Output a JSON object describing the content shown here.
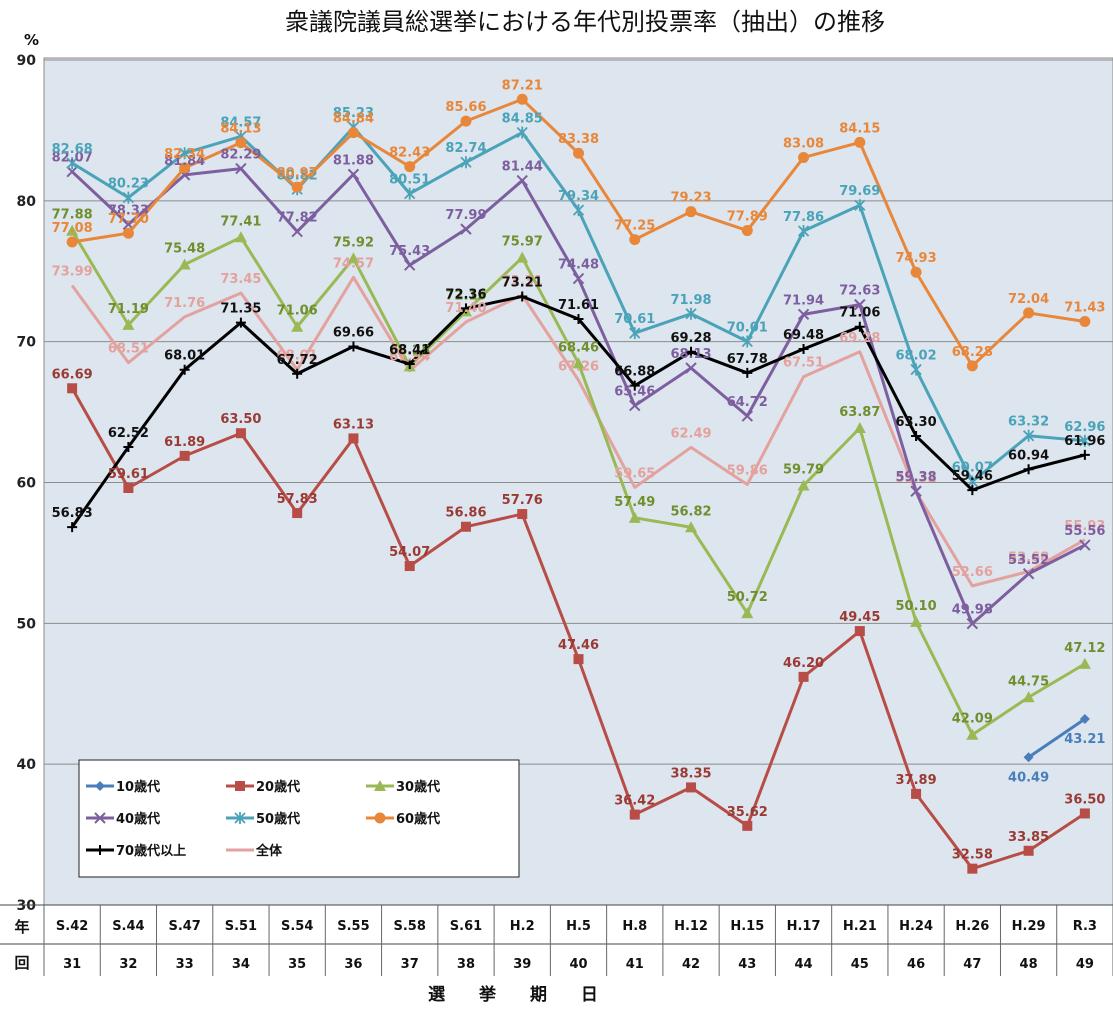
{
  "chart_data": {
    "type": "line",
    "title": "衆議院議員総選挙における年代別投票率（抽出）の推移",
    "ylabel": "%",
    "xlabel": "選 挙 期 日",
    "ylim": [
      30,
      90
    ],
    "yticks": [
      30,
      40,
      50,
      60,
      70,
      80,
      90
    ],
    "grid": true,
    "legend_position": "bottom-left",
    "row_headers": [
      "年",
      "回"
    ],
    "categories": [
      "S.42",
      "S.44",
      "S.47",
      "S.51",
      "S.54",
      "S.55",
      "S.58",
      "S.61",
      "H.2",
      "H.5",
      "H.8",
      "H.12",
      "H.15",
      "H.17",
      "H.21",
      "H.24",
      "H.26",
      "H.29",
      "R.3"
    ],
    "session_numbers": [
      "31",
      "32",
      "33",
      "34",
      "35",
      "36",
      "37",
      "38",
      "39",
      "40",
      "41",
      "42",
      "43",
      "44",
      "45",
      "46",
      "47",
      "48",
      "49"
    ],
    "series": [
      {
        "name": "10歳代",
        "color": "#4a7ebb",
        "marker": "diamond",
        "values": [
          null,
          null,
          null,
          null,
          null,
          null,
          null,
          null,
          null,
          null,
          null,
          null,
          null,
          null,
          null,
          null,
          null,
          40.49,
          43.21
        ],
        "labels": [
          null,
          null,
          null,
          null,
          null,
          null,
          null,
          null,
          null,
          null,
          null,
          null,
          null,
          null,
          null,
          null,
          null,
          "40.49",
          "43.21"
        ]
      },
      {
        "name": "20歳代",
        "color": "#b84c46",
        "marker": "square",
        "values": [
          66.69,
          59.61,
          61.89,
          63.5,
          57.83,
          63.13,
          54.07,
          56.86,
          57.76,
          47.46,
          36.42,
          38.35,
          35.62,
          46.2,
          49.45,
          37.89,
          32.58,
          33.85,
          36.5
        ],
        "labels": [
          "66.69",
          "59.61",
          "61.89",
          "63.50",
          "57.83",
          "63.13",
          "54.07",
          "56.86",
          "57.76",
          "47.46",
          "36.42",
          "38.35",
          "35.62",
          "46.20",
          "49.45",
          "37.89",
          "32.58",
          "33.85",
          "36.50"
        ]
      },
      {
        "name": "30歳代",
        "color": "#98b954",
        "marker": "triangle",
        "values": [
          77.88,
          71.19,
          75.48,
          77.41,
          71.06,
          75.92,
          68.25,
          72.15,
          75.97,
          68.46,
          57.49,
          56.82,
          50.72,
          59.79,
          63.87,
          50.1,
          42.09,
          44.75,
          47.12
        ],
        "labels": [
          "77.88",
          "71.19",
          "75.48",
          "77.41",
          "71.06",
          "75.92",
          "68.25",
          "72.15",
          "75.97",
          "68.46",
          "57.49",
          "56.82",
          "50.72",
          "59.79",
          "63.87",
          "50.10",
          "42.09",
          "44.75",
          "47.12"
        ]
      },
      {
        "name": "40歳代",
        "color": "#7d5fa0",
        "marker": "x",
        "values": [
          82.07,
          78.33,
          81.84,
          82.29,
          77.82,
          81.88,
          75.43,
          77.99,
          81.44,
          74.48,
          65.46,
          68.13,
          64.72,
          71.94,
          72.63,
          59.38,
          49.98,
          53.52,
          55.56
        ],
        "labels": [
          "82.07",
          "78.33",
          "81.84",
          "82.29",
          "77.82",
          "81.88",
          "75.43",
          "77.99",
          "81.44",
          "74.48",
          "65.46",
          "68.13",
          "64.72",
          "71.94",
          "72.63",
          "59.38",
          "49.98",
          "53.52",
          "55.56"
        ]
      },
      {
        "name": "50歳代",
        "color": "#4aa3b8",
        "marker": "star",
        "values": [
          82.68,
          80.23,
          83.38,
          84.57,
          80.82,
          85.23,
          80.51,
          82.74,
          84.85,
          79.34,
          70.61,
          71.98,
          70.01,
          77.86,
          79.69,
          68.02,
          60.07,
          63.32,
          62.96
        ],
        "labels": [
          "82.68",
          "80.23",
          "",
          "84.57",
          "80.82",
          "85.23",
          "80.51",
          "82.74",
          "84.85",
          "79.34",
          "70.61",
          "71.98",
          "70.01",
          "77.86",
          "79.69",
          "68.02",
          "60.07",
          "63.32",
          "62.96"
        ]
      },
      {
        "name": "60歳代",
        "color": "#e8873a",
        "marker": "circle",
        "values": [
          77.08,
          77.7,
          82.34,
          84.13,
          80.97,
          84.84,
          82.43,
          85.66,
          87.21,
          83.38,
          77.25,
          79.23,
          77.89,
          83.08,
          84.15,
          74.93,
          68.28,
          72.04,
          71.43
        ],
        "labels": [
          "77.08",
          "77.70",
          "82.34",
          "84.13",
          "80.97",
          "84.84",
          "82.43",
          "85.66",
          "87.21",
          "83.38",
          "77.25",
          "79.23",
          "77.89",
          "83.08",
          "84.15",
          "74.93",
          "68.28",
          "72.04",
          "71.43"
        ]
      },
      {
        "name": "70歳代以上",
        "color": "#000000",
        "marker": "plus",
        "values": [
          56.83,
          62.52,
          68.01,
          71.35,
          67.72,
          69.66,
          68.41,
          72.36,
          73.21,
          71.61,
          66.88,
          69.28,
          67.78,
          69.48,
          71.06,
          63.3,
          59.46,
          60.94,
          61.96
        ],
        "labels": [
          "56.83",
          "62.52",
          "68.01",
          "71.35",
          "67.72",
          "69.66",
          "68.41",
          "72.36",
          "73.21",
          "71.61",
          "66.88",
          "69.28",
          "67.78",
          "69.48",
          "71.06",
          "63.30",
          "59.46",
          "60.94",
          "61.96"
        ]
      },
      {
        "name": "全体",
        "color": "#e3a29e",
        "marker": "none",
        "values": [
          73.99,
          68.51,
          71.76,
          73.45,
          68.01,
          74.57,
          67.94,
          71.4,
          73.31,
          67.26,
          59.65,
          62.49,
          59.86,
          67.51,
          69.28,
          59.32,
          52.66,
          53.68,
          55.93
        ],
        "labels": [
          "73.99",
          "68.51",
          "71.76",
          "73.45",
          "68.01",
          "74.57",
          "67.94",
          "71.40",
          "73.31",
          "67.26",
          "59.65",
          "62.49",
          "59.86",
          "67.51",
          "69.28",
          "59.32",
          "52.66",
          "53.68",
          "55.93"
        ]
      }
    ]
  }
}
